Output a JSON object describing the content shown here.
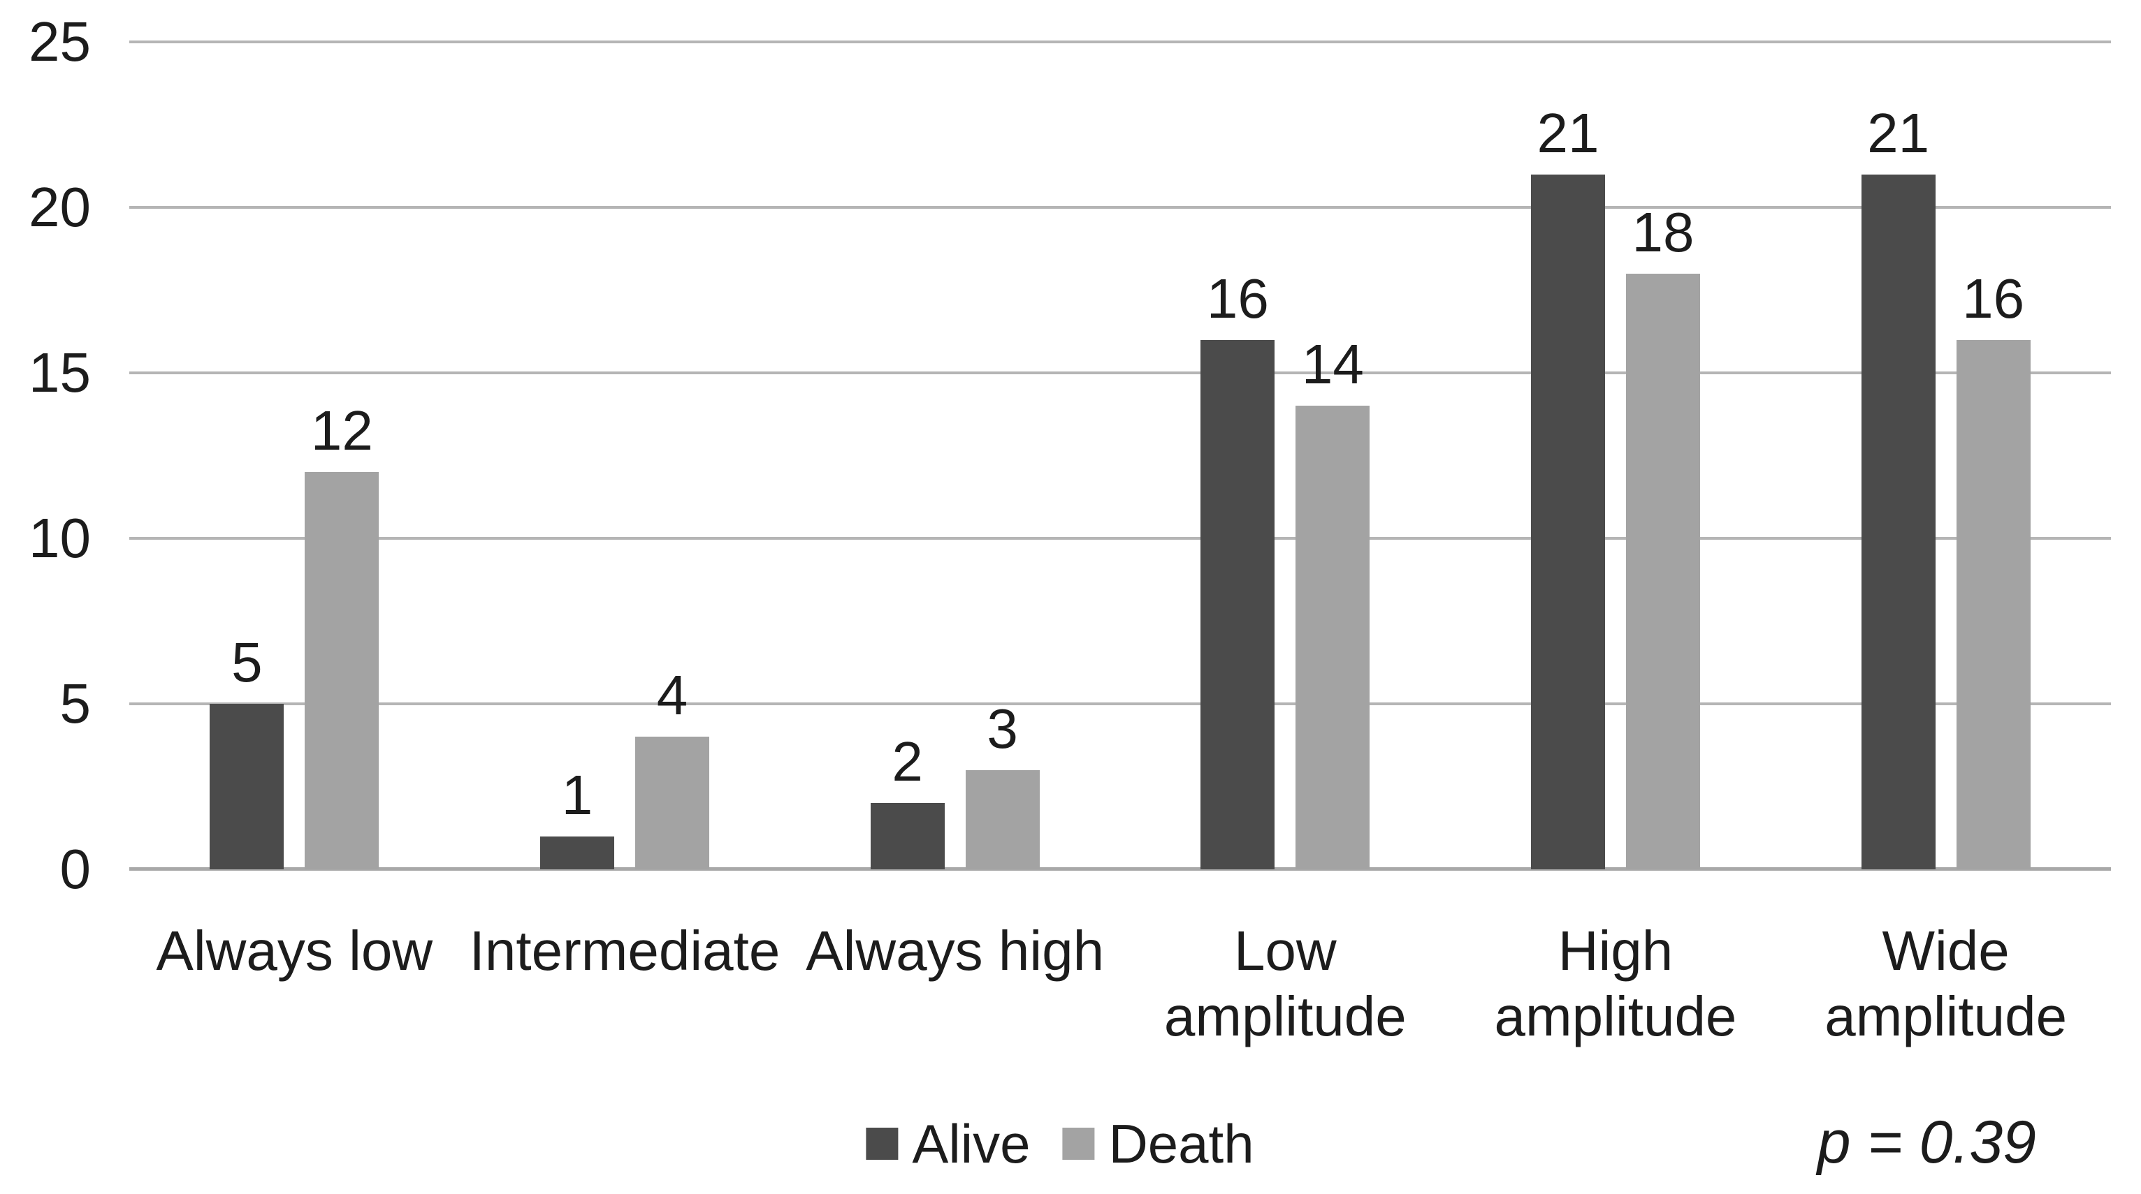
{
  "chart_data": {
    "type": "bar",
    "categories": [
      "Always low",
      "Intermediate",
      "Always high",
      "Low amplitude",
      "High\namplitude",
      "Wide\namplitude"
    ],
    "series": [
      {
        "name": "Alive",
        "color": "#4b4b4b",
        "values": [
          5,
          1,
          2,
          16,
          21,
          21
        ]
      },
      {
        "name": "Death",
        "color": "#a3a3a3",
        "values": [
          12,
          4,
          3,
          14,
          18,
          16
        ]
      }
    ],
    "title": "",
    "xlabel": "",
    "ylabel": "",
    "ylim": [
      0,
      25
    ],
    "yticks": [
      0,
      5,
      10,
      15,
      20,
      25
    ],
    "grid": true,
    "legend_position": "bottom-center",
    "annotation": "p = 0.39"
  },
  "legend": {
    "items": [
      {
        "label": "Alive",
        "color": "#4b4b4b"
      },
      {
        "label": "Death",
        "color": "#a3a3a3"
      }
    ]
  },
  "annotation": {
    "p_value": "p = 0.39"
  },
  "colors": {
    "bar_alive": "#4b4b4b",
    "bar_death": "#a3a3a3",
    "gridline": "#b5b5b5",
    "baseline": "#a8a8a8",
    "text": "#1c1c1c"
  }
}
